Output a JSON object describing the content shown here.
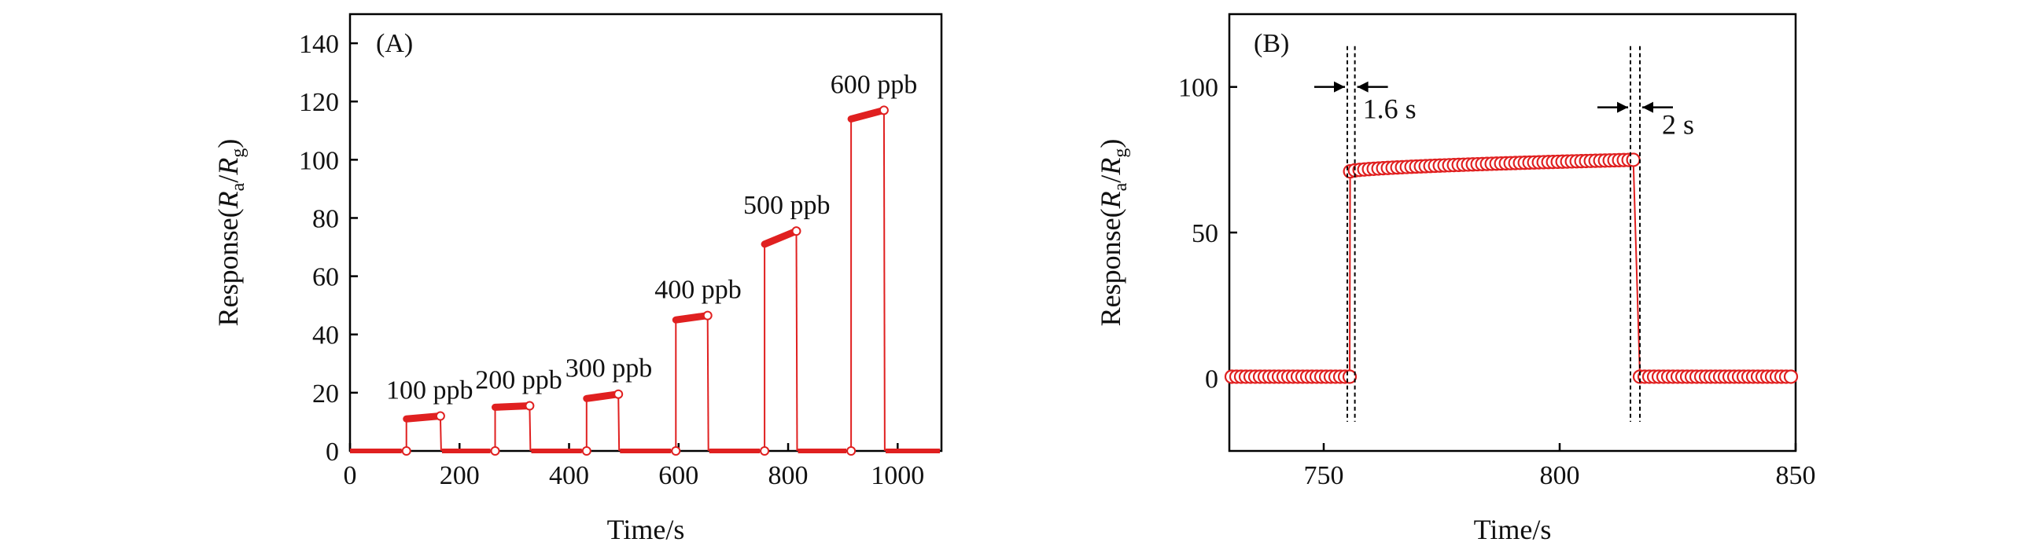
{
  "chart_data": [
    {
      "type": "line",
      "panel_label": "(A)",
      "xlabel": "Time/s",
      "ylabel_prefix": "Response(",
      "ylabel_var1": "R",
      "ylabel_sub1": "a",
      "ylabel_slash": "/",
      "ylabel_var2": "R",
      "ylabel_sub2": "g",
      "ylabel_suffix": ")",
      "xlim": [
        0,
        1080
      ],
      "ylim": [
        0,
        150
      ],
      "xticks": [
        0,
        200,
        400,
        600,
        800,
        1000
      ],
      "xtick_labels": [
        "0",
        "200",
        "400",
        "600",
        "800",
        "1000"
      ],
      "yticks": [
        0,
        20,
        40,
        60,
        80,
        100,
        120,
        140
      ],
      "ytick_labels": [
        "0",
        "20",
        "40",
        "60",
        "80",
        "100",
        "120",
        "140"
      ],
      "color": "#e02020",
      "pulses": [
        {
          "label": "100 ppb",
          "on": 103,
          "off": 165,
          "start": 11,
          "end": 12
        },
        {
          "label": "200 ppb",
          "on": 265,
          "off": 328,
          "start": 15,
          "end": 15.5
        },
        {
          "label": "300 ppb",
          "on": 432,
          "off": 490,
          "start": 18,
          "end": 19.5
        },
        {
          "label": "400 ppb",
          "on": 595,
          "off": 653,
          "start": 45,
          "end": 46.5
        },
        {
          "label": "500 ppb",
          "on": 757,
          "off": 815,
          "start": 71,
          "end": 75.5
        },
        {
          "label": "600 ppb",
          "on": 915,
          "off": 975,
          "start": 114,
          "end": 117
        }
      ]
    },
    {
      "type": "scatter",
      "panel_label": "(B)",
      "xlabel": "Time/s",
      "ylabel_prefix": "Response(",
      "ylabel_var1": "R",
      "ylabel_sub1": "a",
      "ylabel_slash": "/",
      "ylabel_var2": "R",
      "ylabel_sub2": "g",
      "ylabel_suffix": ")",
      "xlim": [
        730,
        850
      ],
      "ylim": [
        -25,
        125
      ],
      "xticks": [
        750,
        800,
        850
      ],
      "xtick_labels": [
        "750",
        "800",
        "850"
      ],
      "yticks": [
        0,
        50,
        100
      ],
      "ytick_labels": [
        "0",
        "50",
        "100"
      ],
      "color": "#e02020",
      "baseline": 0.5,
      "rise_time": 755.6,
      "plateau_start": 71,
      "plateau_end": 75,
      "fall_time": 816.4,
      "step": 1,
      "annotations": [
        {
          "text": "1.6 s",
          "t1": 755,
          "t2": 756.6
        },
        {
          "text": "2 s",
          "t1": 815,
          "t2": 817
        }
      ]
    }
  ]
}
